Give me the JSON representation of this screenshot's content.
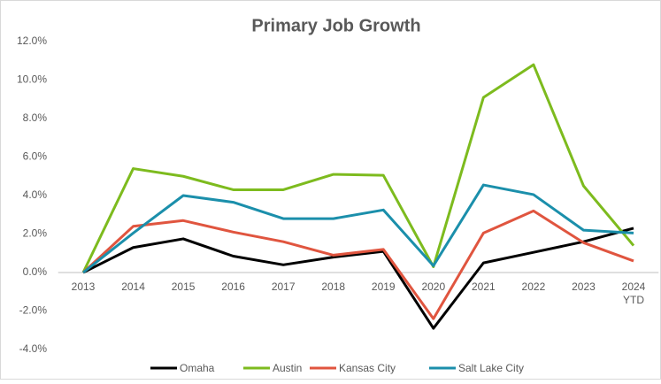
{
  "chart_data": {
    "type": "line",
    "title": "Primary Job Growth",
    "categories": [
      "2013",
      "2014",
      "2015",
      "2016",
      "2017",
      "2018",
      "2019",
      "2020",
      "2021",
      "2022",
      "2023",
      "2024 YTD"
    ],
    "series": [
      {
        "name": "Omaha",
        "color": "#000000",
        "values": [
          0,
          1.3,
          1.75,
          0.85,
          0.4,
          0.8,
          1.1,
          -2.9,
          0.5,
          1.05,
          1.6,
          2.3
        ]
      },
      {
        "name": "Austin",
        "color": "#7dbb1e",
        "values": [
          0,
          5.4,
          5.0,
          4.3,
          4.3,
          5.1,
          5.05,
          0.3,
          9.1,
          10.8,
          4.5,
          1.4
        ]
      },
      {
        "name": "Kansas City",
        "color": "#e0553f",
        "values": [
          0,
          2.4,
          2.7,
          2.1,
          1.6,
          0.9,
          1.2,
          -2.4,
          2.05,
          3.2,
          1.55,
          0.6
        ]
      },
      {
        "name": "Salt Lake City",
        "color": "#1b8fab",
        "values": [
          0,
          2.05,
          4.0,
          3.65,
          2.8,
          2.8,
          3.25,
          0.35,
          4.55,
          4.05,
          2.2,
          2.05
        ]
      }
    ],
    "ylim": [
      -4,
      12
    ],
    "yticks": [
      {
        "value": -4,
        "label": "-4.0%"
      },
      {
        "value": -2,
        "label": "-2.0%"
      },
      {
        "value": 0,
        "label": "0.0%"
      },
      {
        "value": 2,
        "label": "2.0%"
      },
      {
        "value": 4,
        "label": "4.0%"
      },
      {
        "value": 6,
        "label": "6.0%"
      },
      {
        "value": 8,
        "label": "8.0%"
      },
      {
        "value": 10,
        "label": "10.0%"
      },
      {
        "value": 12,
        "label": "12.0%"
      }
    ],
    "legend": "bottom"
  }
}
